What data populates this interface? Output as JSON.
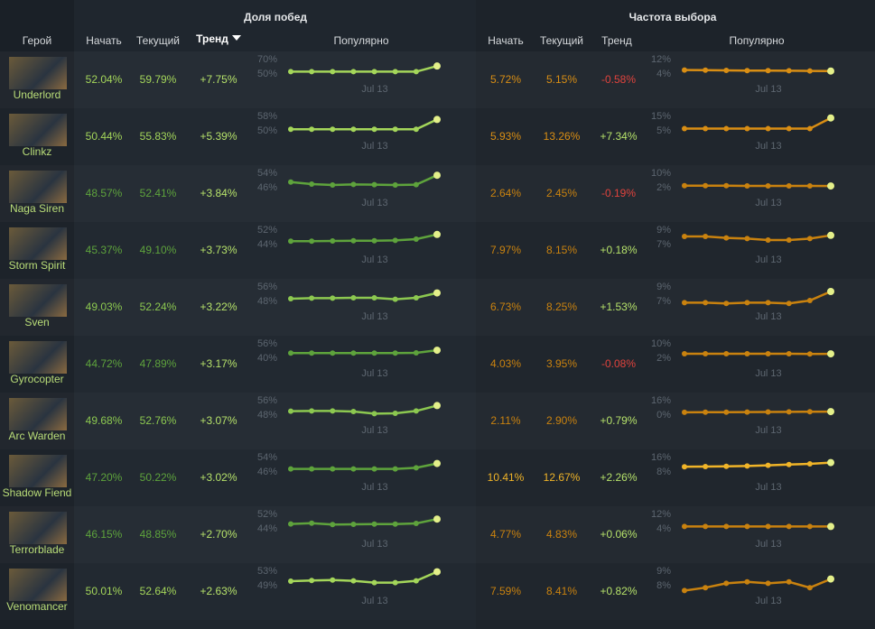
{
  "header": {
    "hero": "Герой",
    "win_title": "Доля побед",
    "pick_title": "Частота выбора",
    "win_columns": [
      "Начать",
      "Текущий",
      "Тренд",
      "Популярно"
    ],
    "pick_columns": [
      "Начать",
      "Текущий",
      "Тренд",
      "Популярно"
    ]
  },
  "rows": [
    {
      "hero": "Underlord",
      "win": {
        "start": "52.04%",
        "current": "59.79%",
        "trend": "+7.75%",
        "color": "#a4d65a",
        "trend_color": "#b6e26a",
        "spark": {
          "yticks": [
            {
              "value": 70,
              "label": "70%"
            },
            {
              "value": 50,
              "label": "50%"
            }
          ],
          "xlabel": "Jul 13",
          "values": [
            52,
            52,
            52,
            52,
            52,
            52,
            52,
            59.8
          ]
        }
      },
      "pick": {
        "start": "5.72%",
        "current": "5.15%",
        "trend": "-0.58%",
        "color": "#d98e14",
        "trend_color": "#e0433d",
        "spark": {
          "yticks": [
            {
              "value": 12,
              "label": "12%"
            },
            {
              "value": 4,
              "label": "4%"
            }
          ],
          "xlabel": "Jul 13",
          "values": [
            5.7,
            5.6,
            5.5,
            5.4,
            5.4,
            5.3,
            5.2,
            5.15
          ]
        }
      }
    },
    {
      "hero": "Clinkz",
      "win": {
        "start": "50.44%",
        "current": "55.83%",
        "trend": "+5.39%",
        "color": "#a4d65a",
        "trend_color": "#b6e26a",
        "spark": {
          "yticks": [
            {
              "value": 58,
              "label": "58%"
            },
            {
              "value": 50,
              "label": "50%"
            }
          ],
          "xlabel": "Jul 13",
          "values": [
            50.4,
            50.4,
            50.4,
            50.4,
            50.4,
            50.4,
            50.4,
            55.8
          ]
        }
      },
      "pick": {
        "start": "5.93%",
        "current": "13.26%",
        "trend": "+7.34%",
        "color": "#d98e14",
        "trend_color": "#b6e26a",
        "spark": {
          "yticks": [
            {
              "value": 15,
              "label": "15%"
            },
            {
              "value": 5,
              "label": "5%"
            }
          ],
          "xlabel": "Jul 13",
          "values": [
            5.9,
            5.9,
            5.9,
            5.9,
            5.9,
            5.9,
            5.9,
            13.3
          ]
        }
      }
    },
    {
      "hero": "Naga Siren",
      "win": {
        "start": "48.57%",
        "current": "52.41%",
        "trend": "+3.84%",
        "color": "#5ea33c",
        "trend_color": "#b6e26a",
        "spark": {
          "yticks": [
            {
              "value": 54,
              "label": "54%"
            },
            {
              "value": 46,
              "label": "46%"
            }
          ],
          "xlabel": "Jul 13",
          "values": [
            48.6,
            47.5,
            47,
            47.3,
            47.2,
            47,
            47.2,
            52.4
          ]
        }
      },
      "pick": {
        "start": "2.64%",
        "current": "2.45%",
        "trend": "-0.19%",
        "color": "#c9820f",
        "trend_color": "#e0433d",
        "spark": {
          "yticks": [
            {
              "value": 10,
              "label": "10%"
            },
            {
              "value": 2,
              "label": "2%"
            }
          ],
          "xlabel": "Jul 13",
          "values": [
            2.6,
            2.6,
            2.6,
            2.5,
            2.5,
            2.5,
            2.5,
            2.45
          ]
        }
      }
    },
    {
      "hero": "Storm Spirit",
      "win": {
        "start": "45.37%",
        "current": "49.10%",
        "trend": "+3.73%",
        "color": "#5ea33c",
        "trend_color": "#b6e26a",
        "spark": {
          "yticks": [
            {
              "value": 52,
              "label": "52%"
            },
            {
              "value": 44,
              "label": "44%"
            }
          ],
          "xlabel": "Jul 13",
          "values": [
            45.4,
            45.4,
            45.5,
            45.6,
            45.6,
            45.8,
            46.5,
            49.1
          ]
        }
      },
      "pick": {
        "start": "7.97%",
        "current": "8.15%",
        "trend": "+0.18%",
        "color": "#c9820f",
        "trend_color": "#b6e26a",
        "spark": {
          "yticks": [
            {
              "value": 9,
              "label": "9%"
            },
            {
              "value": 7,
              "label": "7%"
            }
          ],
          "xlabel": "Jul 13",
          "values": [
            8,
            8,
            7.8,
            7.7,
            7.5,
            7.5,
            7.7,
            8.15
          ]
        }
      }
    },
    {
      "hero": "Sven",
      "win": {
        "start": "49.03%",
        "current": "52.24%",
        "trend": "+3.22%",
        "color": "#8cc850",
        "trend_color": "#b6e26a",
        "spark": {
          "yticks": [
            {
              "value": 56,
              "label": "56%"
            },
            {
              "value": 48,
              "label": "48%"
            }
          ],
          "xlabel": "Jul 13",
          "values": [
            49,
            49.3,
            49.3,
            49.5,
            49.5,
            48.7,
            49.5,
            52.2
          ]
        }
      },
      "pick": {
        "start": "6.73%",
        "current": "8.25%",
        "trend": "+1.53%",
        "color": "#c9820f",
        "trend_color": "#b6e26a",
        "spark": {
          "yticks": [
            {
              "value": 9,
              "label": "9%"
            },
            {
              "value": 7,
              "label": "7%"
            }
          ],
          "xlabel": "Jul 13",
          "values": [
            6.7,
            6.7,
            6.6,
            6.7,
            6.7,
            6.6,
            7,
            8.25
          ]
        }
      }
    },
    {
      "hero": "Gyrocopter",
      "win": {
        "start": "44.72%",
        "current": "47.89%",
        "trend": "+3.17%",
        "color": "#5ea33c",
        "trend_color": "#b6e26a",
        "spark": {
          "yticks": [
            {
              "value": 56,
              "label": "56%"
            },
            {
              "value": 40,
              "label": "40%"
            }
          ],
          "xlabel": "Jul 13",
          "values": [
            44.7,
            44.7,
            44.7,
            44.7,
            44.7,
            44.7,
            45,
            47.9
          ]
        }
      },
      "pick": {
        "start": "4.03%",
        "current": "3.95%",
        "trend": "-0.08%",
        "color": "#c9820f",
        "trend_color": "#e0433d",
        "spark": {
          "yticks": [
            {
              "value": 10,
              "label": "10%"
            },
            {
              "value": 2,
              "label": "2%"
            }
          ],
          "xlabel": "Jul 13",
          "values": [
            4,
            4,
            4,
            4,
            4,
            4,
            3.9,
            3.95
          ]
        }
      }
    },
    {
      "hero": "Arc Warden",
      "win": {
        "start": "49.68%",
        "current": "52.76%",
        "trend": "+3.07%",
        "color": "#8cc850",
        "trend_color": "#b6e26a",
        "spark": {
          "yticks": [
            {
              "value": 56,
              "label": "56%"
            },
            {
              "value": 48,
              "label": "48%"
            }
          ],
          "xlabel": "Jul 13",
          "values": [
            49.7,
            49.8,
            49.8,
            49.5,
            48.3,
            48.5,
            49.8,
            52.8
          ]
        }
      },
      "pick": {
        "start": "2.11%",
        "current": "2.90%",
        "trend": "+0.79%",
        "color": "#c9820f",
        "trend_color": "#b6e26a",
        "spark": {
          "yticks": [
            {
              "value": 16,
              "label": "16%"
            },
            {
              "value": 0,
              "label": "0%"
            }
          ],
          "xlabel": "Jul 13",
          "values": [
            2.1,
            2.2,
            2.3,
            2.4,
            2.5,
            2.6,
            2.8,
            2.9
          ]
        }
      }
    },
    {
      "hero": "Shadow Fiend",
      "win": {
        "start": "47.20%",
        "current": "50.22%",
        "trend": "+3.02%",
        "color": "#5ea33c",
        "trend_color": "#b6e26a",
        "spark": {
          "yticks": [
            {
              "value": 54,
              "label": "54%"
            },
            {
              "value": 46,
              "label": "46%"
            }
          ],
          "xlabel": "Jul 13",
          "values": [
            47.2,
            47.2,
            47.2,
            47.2,
            47.2,
            47.2,
            47.8,
            50.2
          ]
        }
      },
      "pick": {
        "start": "10.41%",
        "current": "12.67%",
        "trend": "+2.26%",
        "color": "#f0b428",
        "trend_color": "#b6e26a",
        "spark": {
          "yticks": [
            {
              "value": 16,
              "label": "16%"
            },
            {
              "value": 8,
              "label": "8%"
            }
          ],
          "xlabel": "Jul 13",
          "values": [
            10.4,
            10.5,
            10.6,
            10.8,
            11.2,
            11.6,
            12,
            12.7
          ]
        }
      }
    },
    {
      "hero": "Terrorblade",
      "win": {
        "start": "46.15%",
        "current": "48.85%",
        "trend": "+2.70%",
        "color": "#5ea33c",
        "trend_color": "#b6e26a",
        "spark": {
          "yticks": [
            {
              "value": 52,
              "label": "52%"
            },
            {
              "value": 44,
              "label": "44%"
            }
          ],
          "xlabel": "Jul 13",
          "values": [
            46.2,
            46.6,
            45.9,
            46,
            46.1,
            46.1,
            46.5,
            48.9
          ]
        }
      },
      "pick": {
        "start": "4.77%",
        "current": "4.83%",
        "trend": "+0.06%",
        "color": "#c9820f",
        "trend_color": "#b6e26a",
        "spark": {
          "yticks": [
            {
              "value": 12,
              "label": "12%"
            },
            {
              "value": 4,
              "label": "4%"
            }
          ],
          "xlabel": "Jul 13",
          "values": [
            4.8,
            4.8,
            4.8,
            4.8,
            4.8,
            4.8,
            4.8,
            4.8
          ]
        }
      }
    },
    {
      "hero": "Venomancer",
      "win": {
        "start": "50.01%",
        "current": "52.64%",
        "trend": "+2.63%",
        "color": "#a4d65a",
        "trend_color": "#b6e26a",
        "spark": {
          "yticks": [
            {
              "value": 53,
              "label": "53%"
            },
            {
              "value": 49,
              "label": "49%"
            }
          ],
          "xlabel": "Jul 13",
          "values": [
            50,
            50.2,
            50.3,
            50.1,
            49.6,
            49.6,
            50.1,
            52.6
          ]
        }
      },
      "pick": {
        "start": "7.59%",
        "current": "8.41%",
        "trend": "+0.82%",
        "color": "#c9820f",
        "trend_color": "#b6e26a",
        "spark": {
          "yticks": [
            {
              "value": 9,
              "label": "9%"
            },
            {
              "value": 8,
              "label": "8%"
            }
          ],
          "xlabel": "Jul 13",
          "values": [
            7.6,
            7.8,
            8.1,
            8.2,
            8.1,
            8.2,
            7.8,
            8.4
          ]
        }
      }
    }
  ]
}
